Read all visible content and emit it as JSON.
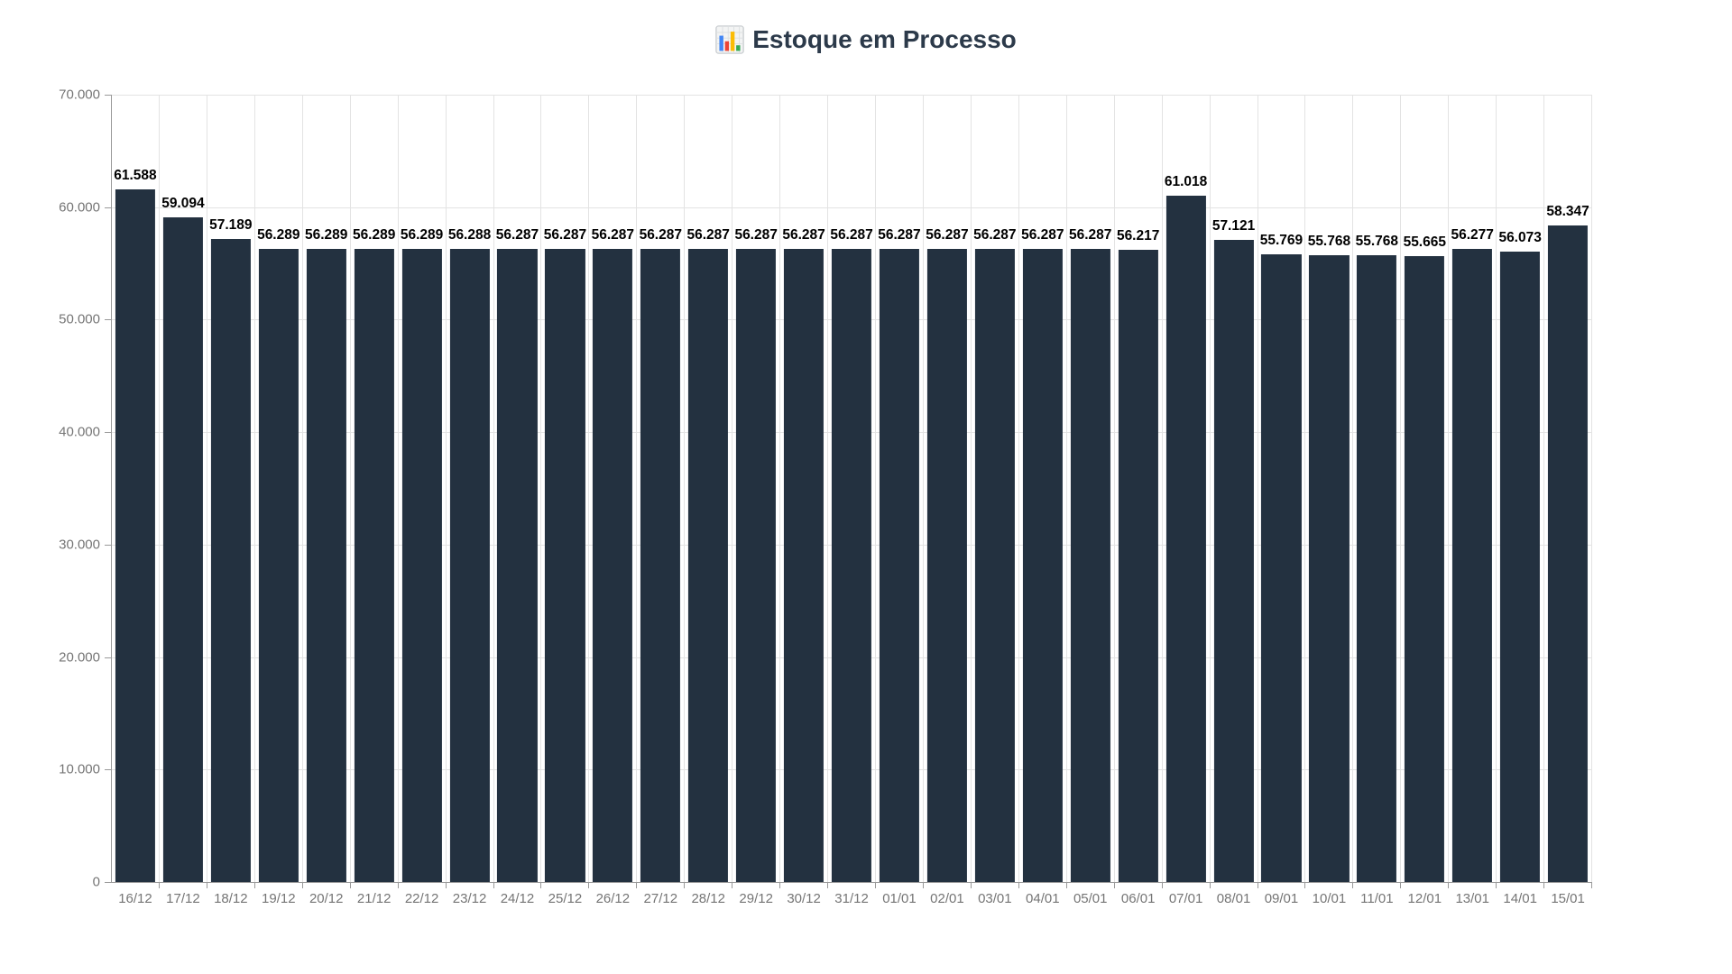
{
  "header": {
    "title_icon": "bar-chart-emoji",
    "title_text": "Estoque em Processo"
  },
  "chart_data": {
    "type": "bar",
    "title": "Estoque em Processo",
    "xlabel": "",
    "ylabel": "",
    "ylim": [
      0,
      70000
    ],
    "grid": true,
    "legend": "none",
    "categories": [
      "16/12",
      "17/12",
      "18/12",
      "19/12",
      "20/12",
      "21/12",
      "22/12",
      "23/12",
      "24/12",
      "25/12",
      "26/12",
      "27/12",
      "28/12",
      "29/12",
      "30/12",
      "31/12",
      "01/01",
      "02/01",
      "03/01",
      "04/01",
      "05/01",
      "06/01",
      "07/01",
      "08/01",
      "09/01",
      "10/01",
      "11/01",
      "12/01",
      "13/01",
      "14/01",
      "15/01"
    ],
    "values": [
      61588,
      59094,
      57189,
      56289,
      56289,
      56289,
      56289,
      56288,
      56287,
      56287,
      56287,
      56287,
      56287,
      56287,
      56287,
      56287,
      56287,
      56287,
      56287,
      56287,
      56287,
      56217,
      61018,
      57121,
      55769,
      55768,
      55768,
      55665,
      56277,
      56073,
      58347
    ],
    "value_labels": [
      "61.588",
      "59.094",
      "57.189",
      "56.289",
      "56.289",
      "56.289",
      "56.289",
      "56.288",
      "56.287",
      "56.287",
      "56.287",
      "56.287",
      "56.287",
      "56.287",
      "56.287",
      "56.287",
      "56.287",
      "56.287",
      "56.287",
      "56.287",
      "56.287",
      "56.217",
      "61.018",
      "57.121",
      "55.769",
      "55.768",
      "55.768",
      "55.665",
      "56.277",
      "56.073",
      "58.347"
    ],
    "y_ticks": [
      {
        "label": "70.000",
        "value": 70000
      },
      {
        "label": "60.000",
        "value": 60000
      },
      {
        "label": "50.000",
        "value": 50000
      },
      {
        "label": "40.000",
        "value": 40000
      },
      {
        "label": "30.000",
        "value": 30000
      },
      {
        "label": "20.000",
        "value": 20000
      },
      {
        "label": "10.000",
        "value": 10000
      },
      {
        "label": "0",
        "value": 0
      }
    ],
    "colors": {
      "bar": "#233140",
      "value_label": "#000000",
      "axis_line": "#999999",
      "gridline": "#e3e3e3",
      "tick_label": "#757575",
      "title": "#2c3a4a"
    }
  }
}
